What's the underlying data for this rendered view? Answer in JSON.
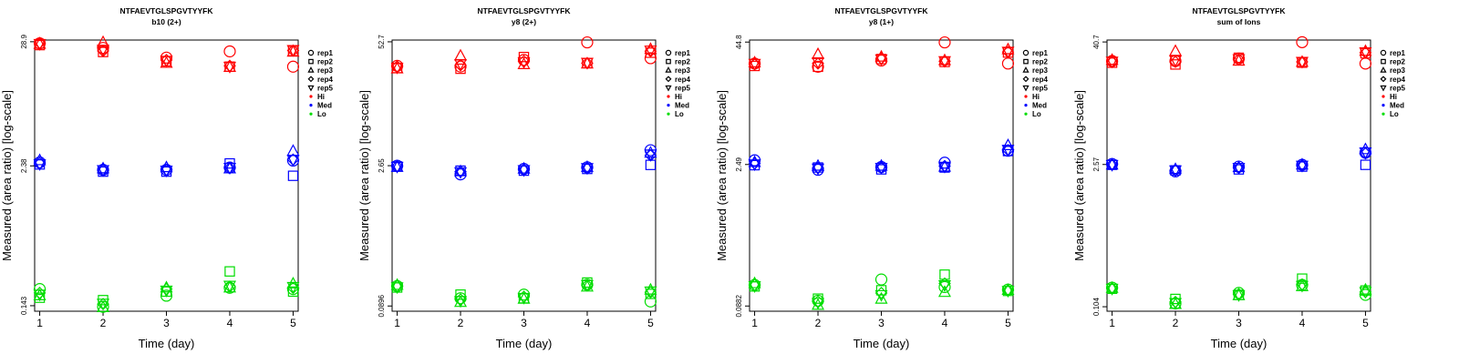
{
  "figure": {
    "x_label": "Time (day)",
    "y_label": "Measured (area ratio) [log-scale]"
  },
  "legend": {
    "shapes": [
      {
        "label": "rep1",
        "symbol": "circle-icon"
      },
      {
        "label": "rep2",
        "symbol": "square-icon"
      },
      {
        "label": "rep3",
        "symbol": "triangle-up-icon"
      },
      {
        "label": "rep4",
        "symbol": "diamond-icon"
      },
      {
        "label": "rep5",
        "symbol": "triangle-down-icon"
      }
    ],
    "levels": [
      {
        "label": "Hi",
        "color": "#ff0000"
      },
      {
        "label": "Med",
        "color": "#0000ff"
      },
      {
        "label": "Lo",
        "color": "#00dd00"
      }
    ]
  },
  "chart_data": [
    {
      "type": "scatter",
      "title": "NTFAEVTGLSPGVTYYFK",
      "subtitle": "b10 (2+)",
      "xlabel": "Time (day)",
      "ylabel": "Measured (area ratio) [log-scale]",
      "y_scale": "log",
      "x_ticks": [
        "1",
        "2",
        "3",
        "4",
        "5"
      ],
      "y_ticks": [
        0.143,
        2.38,
        28.9
      ],
      "y_tick_labels": [
        "0.143",
        "2.38",
        "28.9"
      ],
      "ylim": [
        0.128,
        29.9
      ],
      "series": [
        {
          "level": "Hi",
          "rep": "rep1",
          "values": [
            28.0,
            25.5,
            21.0,
            23.8,
            17.5
          ]
        },
        {
          "level": "Hi",
          "rep": "rep2",
          "values": [
            27.0,
            23.5,
            19.5,
            17.5,
            24.0
          ]
        },
        {
          "level": "Hi",
          "rep": "rep3",
          "values": [
            27.5,
            28.5,
            18.8,
            17.3,
            23.5
          ]
        },
        {
          "level": "Hi",
          "rep": "rep4",
          "values": [
            28.2,
            24.0,
            20.0,
            17.8,
            24.2
          ]
        },
        {
          "level": "Hi",
          "rep": "rep5",
          "values": [
            27.8,
            24.8,
            19.8,
            17.6,
            24.6
          ]
        },
        {
          "level": "Med",
          "rep": "rep1",
          "values": [
            2.55,
            2.2,
            2.2,
            2.3,
            2.65
          ]
        },
        {
          "level": "Med",
          "rep": "rep2",
          "values": [
            2.45,
            2.12,
            2.12,
            2.5,
            1.95
          ]
        },
        {
          "level": "Med",
          "rep": "rep3",
          "values": [
            2.65,
            2.25,
            2.3,
            2.25,
            3.2
          ]
        },
        {
          "level": "Med",
          "rep": "rep4",
          "values": [
            2.5,
            2.18,
            2.2,
            2.28,
            2.7
          ]
        },
        {
          "level": "Med",
          "rep": "rep5",
          "values": [
            2.48,
            2.2,
            2.18,
            2.3,
            2.7
          ]
        },
        {
          "level": "Lo",
          "rep": "rep1",
          "values": [
            0.2,
            0.14,
            0.175,
            0.205,
            0.2
          ]
        },
        {
          "level": "Lo",
          "rep": "rep2",
          "values": [
            0.168,
            0.16,
            0.19,
            0.285,
            0.19
          ]
        },
        {
          "level": "Lo",
          "rep": "rep3",
          "values": [
            0.175,
            0.138,
            0.205,
            0.205,
            0.222
          ]
        },
        {
          "level": "Lo",
          "rep": "rep4",
          "values": [
            0.185,
            0.148,
            0.2,
            0.21,
            0.205
          ]
        },
        {
          "level": "Lo",
          "rep": "rep5",
          "values": [
            0.18,
            0.15,
            0.195,
            0.215,
            0.21
          ]
        }
      ]
    },
    {
      "type": "scatter",
      "title": "NTFAEVTGLSPGVTYYFK",
      "subtitle": "y8 (2+)",
      "xlabel": "Time (day)",
      "ylabel": "Measured (area ratio) [log-scale]",
      "y_scale": "log",
      "x_ticks": [
        "1",
        "2",
        "3",
        "4",
        "5"
      ],
      "y_ticks": [
        0.0896,
        2.65,
        52.7
      ],
      "y_tick_labels": [
        "0.0896",
        "2.65",
        "52.7"
      ],
      "ylim": [
        0.079,
        55.0
      ],
      "series": [
        {
          "level": "Hi",
          "rep": "rep1",
          "values": [
            29.5,
            29.0,
            34.0,
            52.0,
            35.5
          ]
        },
        {
          "level": "Hi",
          "rep": "rep2",
          "values": [
            28.0,
            27.5,
            36.5,
            31.5,
            40.5
          ]
        },
        {
          "level": "Hi",
          "rep": "rep3",
          "values": [
            27.5,
            37.5,
            30.5,
            31.0,
            44.0
          ]
        },
        {
          "level": "Hi",
          "rep": "rep4",
          "values": [
            29.0,
            30.0,
            33.0,
            31.5,
            42.0
          ]
        },
        {
          "level": "Hi",
          "rep": "rep5",
          "values": [
            28.5,
            31.0,
            32.5,
            32.0,
            43.0
          ]
        },
        {
          "level": "Med",
          "rep": "rep1",
          "values": [
            2.65,
            2.15,
            2.45,
            2.55,
            3.85
          ]
        },
        {
          "level": "Med",
          "rep": "rep2",
          "values": [
            2.6,
            2.35,
            2.35,
            2.45,
            2.7
          ]
        },
        {
          "level": "Med",
          "rep": "rep3",
          "values": [
            2.55,
            2.3,
            2.45,
            2.55,
            3.6
          ]
        },
        {
          "level": "Med",
          "rep": "rep4",
          "values": [
            2.62,
            2.3,
            2.42,
            2.5,
            3.4
          ]
        },
        {
          "level": "Med",
          "rep": "rep5",
          "values": [
            2.6,
            2.28,
            2.4,
            2.52,
            3.5
          ]
        },
        {
          "level": "Lo",
          "rep": "rep1",
          "values": [
            0.145,
            0.108,
            0.118,
            0.15,
            0.1
          ]
        },
        {
          "level": "Lo",
          "rep": "rep2",
          "values": [
            0.14,
            0.118,
            0.108,
            0.158,
            0.12
          ]
        },
        {
          "level": "Lo",
          "rep": "rep3",
          "values": [
            0.148,
            0.098,
            0.106,
            0.142,
            0.132
          ]
        },
        {
          "level": "Lo",
          "rep": "rep4",
          "values": [
            0.145,
            0.105,
            0.112,
            0.148,
            0.125
          ]
        },
        {
          "level": "Lo",
          "rep": "rep5",
          "values": [
            0.142,
            0.102,
            0.11,
            0.15,
            0.128
          ]
        }
      ]
    },
    {
      "type": "scatter",
      "title": "NTFAEVTGLSPGVTYYFK",
      "subtitle": "y8 (1+)",
      "xlabel": "Time (day)",
      "ylabel": "Measured (area ratio) [log-scale]",
      "y_scale": "log",
      "x_ticks": [
        "1",
        "2",
        "3",
        "4",
        "5"
      ],
      "y_ticks": [
        0.0882,
        2.49,
        44.8
      ],
      "y_tick_labels": [
        "0.0882",
        "2.49",
        "44.8"
      ],
      "ylim": [
        0.078,
        47.0
      ],
      "series": [
        {
          "level": "Hi",
          "rep": "rep1",
          "values": [
            27.0,
            25.0,
            29.0,
            44.5,
            27.0
          ]
        },
        {
          "level": "Hi",
          "rep": "rep2",
          "values": [
            25.5,
            25.0,
            30.0,
            28.0,
            35.0
          ]
        },
        {
          "level": "Hi",
          "rep": "rep3",
          "values": [
            27.5,
            33.5,
            31.5,
            29.0,
            37.5
          ]
        },
        {
          "level": "Hi",
          "rep": "rep4",
          "values": [
            26.5,
            27.0,
            30.5,
            28.5,
            35.5
          ]
        },
        {
          "level": "Hi",
          "rep": "rep5",
          "values": [
            27.0,
            28.0,
            30.0,
            28.8,
            36.0
          ]
        },
        {
          "level": "Med",
          "rep": "rep1",
          "values": [
            2.75,
            2.2,
            2.35,
            2.6,
            3.45
          ]
        },
        {
          "level": "Med",
          "rep": "rep2",
          "values": [
            2.45,
            2.32,
            2.22,
            2.32,
            3.42
          ]
        },
        {
          "level": "Med",
          "rep": "rep3",
          "values": [
            2.62,
            2.4,
            2.4,
            2.35,
            3.9
          ]
        },
        {
          "level": "Med",
          "rep": "rep4",
          "values": [
            2.55,
            2.3,
            2.3,
            2.4,
            3.5
          ]
        },
        {
          "level": "Med",
          "rep": "rep5",
          "values": [
            2.52,
            2.28,
            2.32,
            2.38,
            3.55
          ]
        },
        {
          "level": "Lo",
          "rep": "rep1",
          "values": [
            0.145,
            0.1,
            0.165,
            0.138,
            0.13
          ]
        },
        {
          "level": "Lo",
          "rep": "rep2",
          "values": [
            0.14,
            0.105,
            0.128,
            0.185,
            0.126
          ]
        },
        {
          "level": "Lo",
          "rep": "rep3",
          "values": [
            0.15,
            0.09,
            0.104,
            0.122,
            0.128
          ]
        },
        {
          "level": "Lo",
          "rep": "rep4",
          "values": [
            0.145,
            0.098,
            0.12,
            0.15,
            0.128
          ]
        },
        {
          "level": "Lo",
          "rep": "rep5",
          "values": [
            0.142,
            0.096,
            0.115,
            0.145,
            0.127
          ]
        }
      ]
    },
    {
      "type": "scatter",
      "title": "NTFAEVTGLSPGVTYYFK",
      "subtitle": "sum of Ions",
      "xlabel": "Time (day)",
      "ylabel": "Measured (area ratio) [log-scale]",
      "y_scale": "log",
      "x_ticks": [
        "1",
        "2",
        "3",
        "4",
        "5"
      ],
      "y_ticks": [
        0.104,
        2.57,
        40.7
      ],
      "y_tick_labels": [
        "0.104",
        "2.57",
        "40.7"
      ],
      "ylim": [
        0.094,
        42.5
      ],
      "series": [
        {
          "level": "Hi",
          "rep": "rep1",
          "values": [
            26.5,
            26.5,
            28.0,
            40.5,
            25.0
          ]
        },
        {
          "level": "Hi",
          "rep": "rep2",
          "values": [
            25.5,
            24.5,
            28.5,
            25.5,
            31.5
          ]
        },
        {
          "level": "Hi",
          "rep": "rep3",
          "values": [
            27.0,
            33.0,
            26.5,
            25.8,
            33.0
          ]
        },
        {
          "level": "Hi",
          "rep": "rep4",
          "values": [
            26.0,
            26.0,
            27.5,
            26.0,
            32.0
          ]
        },
        {
          "level": "Hi",
          "rep": "rep5",
          "values": [
            26.3,
            27.0,
            27.8,
            26.2,
            32.5
          ]
        },
        {
          "level": "Med",
          "rep": "rep1",
          "values": [
            2.6,
            2.2,
            2.45,
            2.55,
            3.35
          ]
        },
        {
          "level": "Med",
          "rep": "rep2",
          "values": [
            2.55,
            2.25,
            2.3,
            2.45,
            2.55
          ]
        },
        {
          "level": "Med",
          "rep": "rep3",
          "values": [
            2.55,
            2.3,
            2.4,
            2.55,
            3.6
          ]
        },
        {
          "level": "Med",
          "rep": "rep4",
          "values": [
            2.57,
            2.25,
            2.38,
            2.5,
            3.3
          ]
        },
        {
          "level": "Med",
          "rep": "rep5",
          "values": [
            2.56,
            2.27,
            2.4,
            2.52,
            3.4
          ]
        },
        {
          "level": "Lo",
          "rep": "rep1",
          "values": [
            0.16,
            0.112,
            0.142,
            0.17,
            0.136
          ]
        },
        {
          "level": "Lo",
          "rep": "rep2",
          "values": [
            0.156,
            0.124,
            0.136,
            0.196,
            0.15
          ]
        },
        {
          "level": "Lo",
          "rep": "rep3",
          "values": [
            0.158,
            0.11,
            0.134,
            0.164,
            0.152
          ]
        },
        {
          "level": "Lo",
          "rep": "rep4",
          "values": [
            0.158,
            0.116,
            0.138,
            0.172,
            0.145
          ]
        },
        {
          "level": "Lo",
          "rep": "rep5",
          "values": [
            0.157,
            0.114,
            0.136,
            0.168,
            0.146
          ]
        }
      ]
    }
  ]
}
